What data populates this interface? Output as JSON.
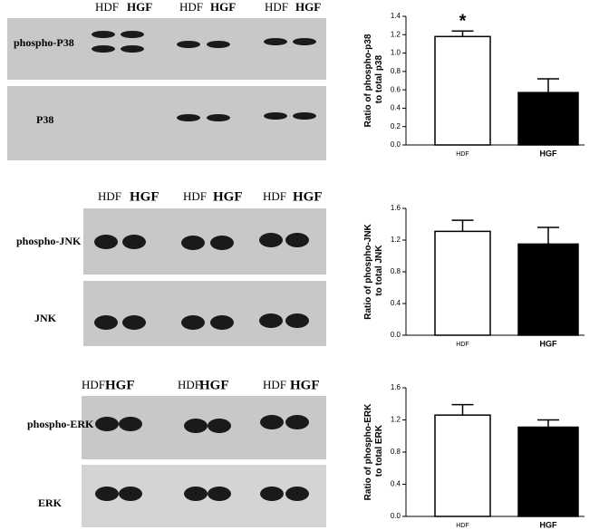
{
  "panels": [
    {
      "header": [
        "HDF",
        "HGF",
        "HDF",
        "HGF",
        "HDF",
        "HGF"
      ],
      "rows": [
        "phospho-P38",
        "P38"
      ]
    },
    {
      "header": [
        "HDF",
        "HGF",
        "HDF",
        "HGF",
        "HDF",
        "HGF"
      ],
      "rows": [
        "phospho-JNK",
        "JNK"
      ]
    },
    {
      "header": [
        "HDF",
        "HGF",
        "HDF",
        "HGF",
        "HDF",
        "HGF"
      ],
      "rows": [
        "phospho-ERK",
        "ERK"
      ]
    }
  ],
  "chart_data": [
    {
      "type": "bar",
      "y_label": "Ratio of phospho-p38 to total p38",
      "categories": [
        "HDF",
        "HGF"
      ],
      "values": [
        1.18,
        0.57
      ],
      "errors": [
        0.06,
        0.15
      ],
      "colors": [
        "#ffffff",
        "#000000"
      ],
      "annotation": "*",
      "ylim": [
        0,
        1.4
      ],
      "yticks": [
        {
          "value": 0,
          "label": "0.0"
        },
        0.2,
        0.4,
        0.6,
        0.8,
        {
          "value": 1,
          "label": "1.0"
        },
        1.2,
        1.4
      ]
    },
    {
      "type": "bar",
      "y_label": "Ratio of phospho-JNK to total JNK",
      "categories": [
        "HDF",
        "HGF"
      ],
      "values": [
        1.31,
        1.15
      ],
      "errors": [
        0.14,
        0.21
      ],
      "colors": [
        "#ffffff",
        "#000000"
      ],
      "ylim": [
        0,
        1.6
      ],
      "yticks": [
        {
          "value": 0,
          "label": "0.0"
        },
        0.4,
        0.8,
        1.2,
        1.6
      ]
    },
    {
      "type": "bar",
      "y_label": "Ratio of phospho-ERK to total ERK",
      "categories": [
        "HDF",
        "HGF"
      ],
      "values": [
        1.26,
        1.11
      ],
      "errors": [
        0.13,
        0.09
      ],
      "colors": [
        "#ffffff",
        "#000000"
      ],
      "ylim": [
        0,
        1.6
      ],
      "yticks": [
        {
          "value": 0,
          "label": "0.0"
        },
        0.4,
        0.8,
        1.2,
        1.6
      ]
    }
  ]
}
